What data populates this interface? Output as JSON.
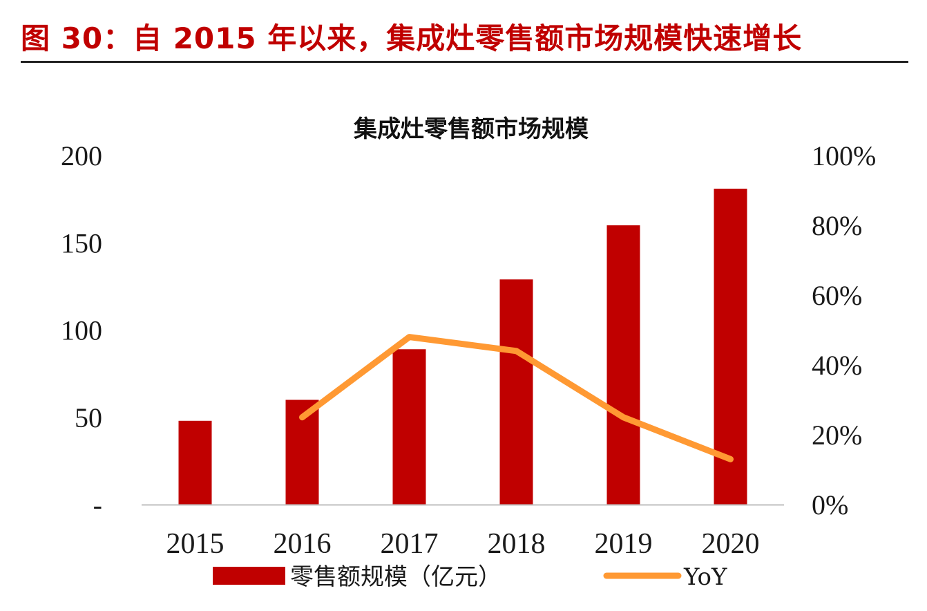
{
  "figure": {
    "heading": "图 30：自 2015 年以来，集成灶零售额市场规模快速增长"
  },
  "chart_data": {
    "type": "bar",
    "title": "集成灶零售额市场规模",
    "categories": [
      "2015",
      "2016",
      "2017",
      "2018",
      "2019",
      "2020"
    ],
    "series": [
      {
        "name": "零售额规模（亿元）",
        "type": "bar",
        "axis": "left",
        "values": [
          48,
          60,
          89,
          129,
          160,
          181
        ],
        "color": "#c00000"
      },
      {
        "name": "YoY",
        "type": "line",
        "axis": "right",
        "values": [
          null,
          25,
          48,
          44,
          25,
          13
        ],
        "color": "#ff9933"
      }
    ],
    "y_left": {
      "min": 0,
      "max": 200,
      "ticks": [
        "-",
        "50",
        "100",
        "150",
        "200"
      ]
    },
    "y_right": {
      "min": 0,
      "max": 100,
      "ticks": [
        "0%",
        "20%",
        "40%",
        "60%",
        "80%",
        "100%"
      ]
    },
    "legend_position": "bottom",
    "grid": false
  }
}
